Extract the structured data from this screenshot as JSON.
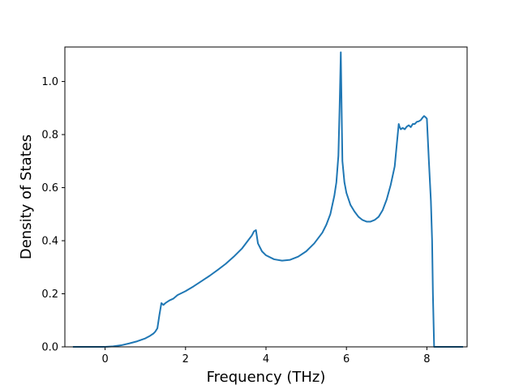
{
  "chart_data": {
    "type": "line",
    "title": "",
    "xlabel": "Frequency (THz)",
    "ylabel": "Density of States",
    "xlim": [
      -1.0,
      9.0
    ],
    "ylim": [
      0.0,
      1.13
    ],
    "x_ticks": [
      0,
      2,
      4,
      6,
      8
    ],
    "x_tick_labels": [
      "0",
      "2",
      "4",
      "6",
      "8"
    ],
    "y_ticks": [
      0.0,
      0.2,
      0.4,
      0.6,
      0.8,
      1.0
    ],
    "y_tick_labels": [
      "0.0",
      "0.2",
      "0.4",
      "0.6",
      "0.8",
      "1.0"
    ],
    "grid": false,
    "legend": "none",
    "series": [
      {
        "color": "#1f77b4",
        "x": [
          -0.8,
          0.0,
          0.2,
          0.4,
          0.6,
          0.8,
          1.0,
          1.1,
          1.2,
          1.25,
          1.3,
          1.35,
          1.4,
          1.45,
          1.5,
          1.6,
          1.7,
          1.8,
          2.0,
          2.2,
          2.4,
          2.6,
          2.8,
          3.0,
          3.2,
          3.4,
          3.6,
          3.65,
          3.7,
          3.75,
          3.8,
          3.9,
          4.0,
          4.2,
          4.4,
          4.6,
          4.8,
          5.0,
          5.2,
          5.4,
          5.5,
          5.6,
          5.7,
          5.75,
          5.8,
          5.83,
          5.86,
          5.88,
          5.9,
          5.95,
          6.0,
          6.1,
          6.2,
          6.3,
          6.4,
          6.5,
          6.6,
          6.7,
          6.8,
          6.9,
          7.0,
          7.1,
          7.2,
          7.25,
          7.3,
          7.32,
          7.35,
          7.4,
          7.45,
          7.5,
          7.55,
          7.6,
          7.65,
          7.7,
          7.75,
          7.8,
          7.85,
          7.9,
          7.93,
          7.97,
          8.0,
          8.05,
          8.1,
          8.13,
          8.15,
          8.18,
          8.2,
          8.5,
          8.9
        ],
        "y": [
          0.0,
          0.0,
          0.002,
          0.006,
          0.013,
          0.021,
          0.032,
          0.04,
          0.05,
          0.058,
          0.07,
          0.12,
          0.165,
          0.158,
          0.165,
          0.175,
          0.182,
          0.195,
          0.21,
          0.228,
          0.248,
          0.268,
          0.29,
          0.313,
          0.34,
          0.37,
          0.41,
          0.42,
          0.435,
          0.44,
          0.39,
          0.36,
          0.345,
          0.33,
          0.325,
          0.328,
          0.34,
          0.36,
          0.39,
          0.43,
          0.46,
          0.5,
          0.57,
          0.62,
          0.72,
          0.9,
          1.11,
          0.9,
          0.7,
          0.62,
          0.58,
          0.535,
          0.51,
          0.49,
          0.478,
          0.472,
          0.472,
          0.478,
          0.49,
          0.515,
          0.555,
          0.61,
          0.68,
          0.76,
          0.84,
          0.83,
          0.82,
          0.825,
          0.82,
          0.83,
          0.835,
          0.828,
          0.84,
          0.84,
          0.848,
          0.85,
          0.855,
          0.865,
          0.87,
          0.865,
          0.86,
          0.7,
          0.55,
          0.4,
          0.2,
          0.0,
          0.0,
          0.0,
          0.0
        ]
      }
    ]
  }
}
